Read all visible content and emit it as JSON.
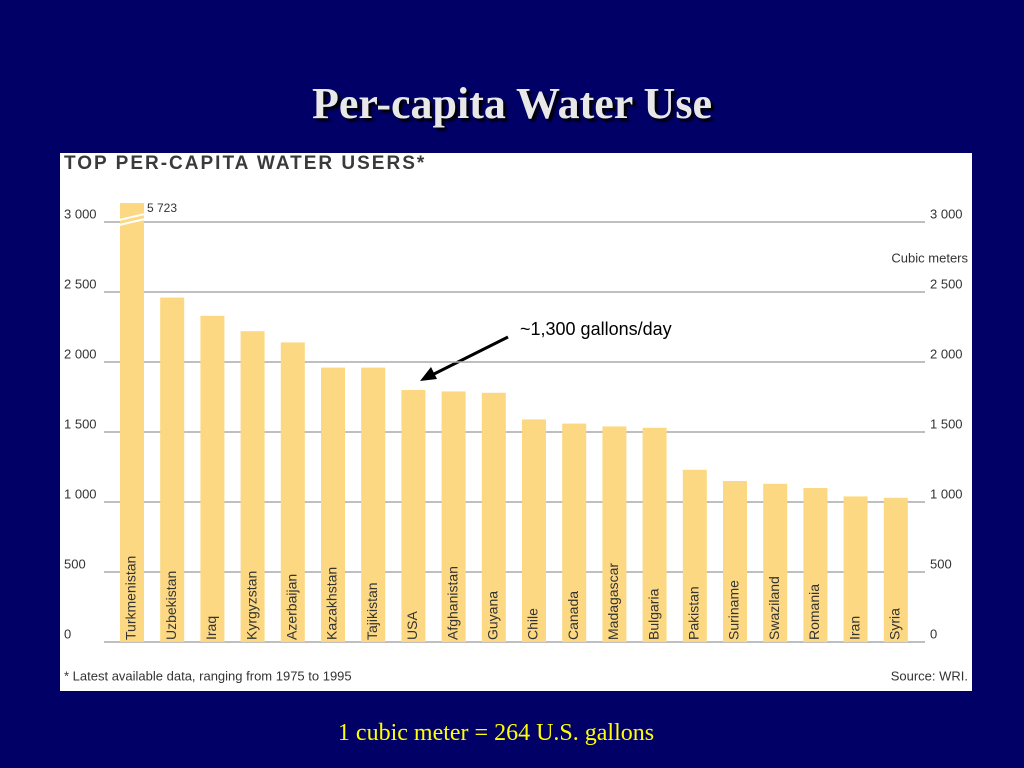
{
  "slide_title": "Per-capita Water Use",
  "caption": "1 cubic meter = 264 U.S. gallons",
  "chart_data": {
    "type": "bar",
    "title": "TOP PER-CAPITA WATER USERS*",
    "footnote": "* Latest available data, ranging from 1975 to 1995",
    "source": "Source: WRI.",
    "y_label": "Cubic meters",
    "annotation": "~1,300 gallons/day",
    "categories": [
      "Turkmenistan",
      "Uzbekistan",
      "Iraq",
      "Kyrgyzstan",
      "Azerbaijan",
      "Kazakhstan",
      "Tajikistan",
      "USA",
      "Afghanistan",
      "Guyana",
      "Chile",
      "Canada",
      "Madagascar",
      "Bulgaria",
      "Pakistan",
      "Suriname",
      "Swaziland",
      "Romania",
      "Iran",
      "Syria"
    ],
    "values": [
      5723,
      2460,
      2330,
      2220,
      2140,
      1960,
      1960,
      1800,
      1790,
      1780,
      1590,
      1560,
      1540,
      1530,
      1230,
      1150,
      1130,
      1100,
      1040,
      1030
    ],
    "value_labels": [
      "5 723",
      null,
      null,
      null,
      null,
      null,
      null,
      null,
      null,
      null,
      null,
      null,
      null,
      null,
      null,
      null,
      null,
      null,
      null,
      null
    ],
    "color": "#fcd882",
    "ylim": [
      0,
      3000
    ],
    "yticks": [
      0,
      500,
      {
        "value": 1000,
        "label": "1 000"
      },
      {
        "value": 1500,
        "label": "1 500"
      },
      {
        "value": 2000,
        "label": "2 000"
      },
      {
        "value": 2500,
        "label": "2 500"
      },
      {
        "value": 3000,
        "label": "3 000"
      }
    ],
    "grid": true
  }
}
